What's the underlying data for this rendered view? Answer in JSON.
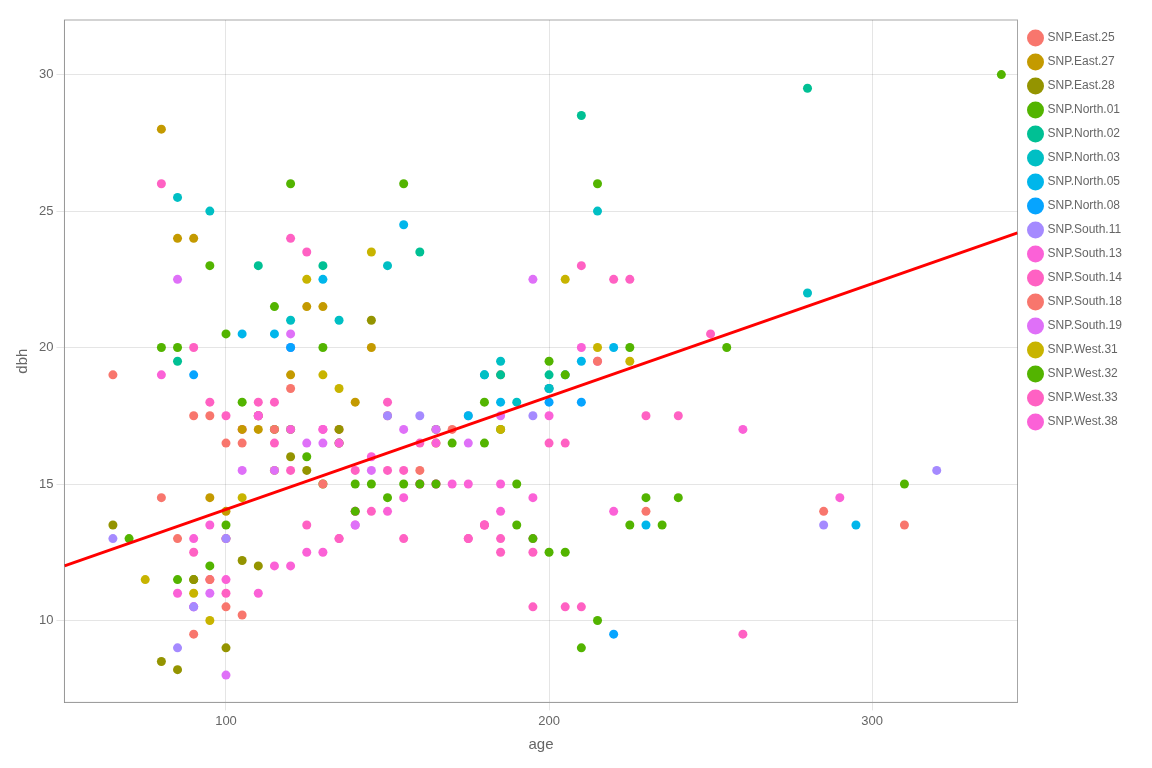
{
  "chart_data": {
    "type": "scatter",
    "xlabel": "age",
    "ylabel": "dbh",
    "xlim": [
      50,
      345
    ],
    "ylim": [
      7,
      32
    ],
    "xticks": [
      100,
      200,
      300
    ],
    "yticks": [
      10,
      15,
      20,
      25,
      30
    ],
    "grid": true,
    "legend": "right",
    "series": [
      {
        "name": "SNP.East.25",
        "color": "#F8766D",
        "x": [
          65,
          80,
          85,
          90,
          95,
          100,
          105
        ],
        "values": [
          19.0,
          14.5,
          13.0,
          9.5,
          11.5,
          10.5,
          10.2
        ]
      },
      {
        "name": "SNP.East.27",
        "color": "#C49A00",
        "x": [
          80,
          85,
          90,
          95,
          100,
          105,
          110,
          120,
          125,
          130,
          140,
          145
        ],
        "values": [
          28.0,
          24.0,
          24.0,
          14.5,
          14.0,
          17.0,
          17.0,
          19.0,
          21.5,
          21.5,
          18.0,
          20.0
        ]
      },
      {
        "name": "SNP.East.28",
        "color": "#949400",
        "x": [
          65,
          80,
          85,
          90,
          100,
          105,
          110,
          120,
          125,
          135,
          145
        ],
        "values": [
          13.5,
          8.5,
          8.2,
          11.5,
          9.0,
          12.2,
          12.0,
          16.0,
          15.5,
          17.0,
          21.0
        ]
      },
      {
        "name": "SNP.North.01",
        "color": "#53B400",
        "x": [
          70,
          85,
          95,
          100,
          115,
          120,
          130,
          140,
          145,
          155,
          165,
          180,
          190,
          200,
          205,
          215,
          225,
          230,
          240,
          255,
          310,
          340
        ],
        "values": [
          13.0,
          20.0,
          23.0,
          20.5,
          21.5,
          26.0,
          20.0,
          14.0,
          15.0,
          26.0,
          15.0,
          18.0,
          15.0,
          19.5,
          19.0,
          26.0,
          20.0,
          14.5,
          14.5,
          20.0,
          15.0,
          30.0
        ]
      },
      {
        "name": "SNP.North.02",
        "color": "#00C094",
        "x": [
          85,
          110,
          130,
          160,
          185,
          200,
          210,
          280
        ],
        "values": [
          19.5,
          23.0,
          23.0,
          23.5,
          19.0,
          19.0,
          28.5,
          29.5
        ]
      },
      {
        "name": "SNP.North.03",
        "color": "#00BFC4",
        "x": [
          85,
          95,
          120,
          135,
          150,
          180,
          185,
          190,
          200,
          215,
          280
        ],
        "values": [
          25.5,
          25.0,
          21.0,
          21.0,
          23.0,
          19.0,
          19.5,
          18.0,
          18.5,
          25.0,
          22.0
        ]
      },
      {
        "name": "SNP.North.05",
        "color": "#00B6EB",
        "x": [
          105,
          115,
          130,
          155,
          175,
          185,
          200,
          205,
          210,
          220,
          230,
          295
        ],
        "values": [
          20.5,
          20.5,
          22.5,
          24.5,
          17.5,
          18.0,
          18.5,
          19.0,
          19.5,
          20.0,
          13.5,
          13.5
        ]
      },
      {
        "name": "SNP.North.08",
        "color": "#06A4FF",
        "x": [
          90,
          120,
          180,
          200,
          210,
          220
        ],
        "values": [
          19.0,
          20.0,
          19.0,
          18.0,
          18.0,
          9.5
        ]
      },
      {
        "name": "SNP.South.11",
        "color": "#A58AFF",
        "x": [
          65,
          85,
          90,
          100,
          120,
          150,
          160,
          175,
          195,
          285,
          320
        ],
        "values": [
          13.0,
          9.0,
          10.5,
          13.0,
          20.0,
          17.5,
          17.5,
          17.5,
          17.5,
          13.5,
          15.5
        ]
      },
      {
        "name": "SNP.South.13",
        "color": "#FB61D7",
        "x": [
          90,
          95,
          100,
          110,
          120,
          130,
          135,
          140,
          145,
          165,
          175,
          185,
          195,
          220,
          290
        ],
        "values": [
          13.0,
          13.5,
          13.0,
          17.5,
          17.0,
          17.0,
          16.5,
          14.0,
          16.0,
          16.5,
          15.0,
          15.0,
          14.5,
          14.0,
          14.5
        ]
      },
      {
        "name": "SNP.South.14",
        "color": "#FF61C3",
        "x": [
          90,
          95,
          100,
          105,
          110,
          115,
          120,
          125,
          135,
          140,
          150,
          155,
          160,
          175,
          180,
          185,
          195,
          205,
          210
        ],
        "values": [
          12.5,
          11.5,
          11.0,
          17.0,
          17.5,
          16.5,
          15.5,
          13.5,
          13.0,
          14.0,
          18.0,
          13.0,
          16.5,
          13.0,
          13.5,
          12.5,
          10.5,
          10.5,
          10.5
        ]
      },
      {
        "name": "SNP.South.18",
        "color": "#F8766D",
        "x": [
          90,
          95,
          100,
          105,
          110,
          115,
          120,
          130,
          135,
          150,
          160,
          170,
          185,
          200,
          215,
          230,
          285,
          310
        ],
        "values": [
          17.5,
          17.5,
          16.5,
          16.5,
          17.5,
          17.0,
          18.5,
          15.0,
          17.0,
          17.5,
          15.5,
          17.0,
          19.0,
          18.5,
          19.5,
          14.0,
          14.0,
          13.5
        ]
      },
      {
        "name": "SNP.South.19",
        "color": "#DF70F8",
        "x": [
          85,
          90,
          95,
          100,
          105,
          115,
          120,
          125,
          130,
          140,
          145,
          155,
          165,
          175,
          185,
          195
        ],
        "values": [
          22.5,
          10.5,
          11.0,
          8.0,
          15.5,
          15.5,
          20.5,
          16.5,
          16.5,
          13.5,
          15.5,
          17.0,
          17.0,
          16.5,
          17.5,
          22.5
        ]
      },
      {
        "name": "SNP.West.31",
        "color": "#C8B400",
        "x": [
          75,
          90,
          95,
          100,
          105,
          115,
          125,
          130,
          135,
          145,
          165,
          185,
          205,
          215,
          225
        ],
        "values": [
          11.5,
          11.0,
          10.0,
          13.0,
          14.5,
          15.5,
          22.5,
          19.0,
          18.5,
          23.5,
          16.5,
          17.0,
          22.5,
          20.0,
          19.5
        ]
      },
      {
        "name": "SNP.West.32",
        "color": "#53B400",
        "x": [
          80,
          85,
          90,
          95,
          100,
          105,
          110,
          115,
          120,
          125,
          130,
          135,
          140,
          150,
          155,
          160,
          165,
          170,
          180,
          185,
          190,
          195,
          200,
          205,
          210,
          215,
          225,
          235
        ],
        "values": [
          20.0,
          11.5,
          11.5,
          12.0,
          13.5,
          18.0,
          17.5,
          17.0,
          17.0,
          16.0,
          15.0,
          16.5,
          15.0,
          14.5,
          15.0,
          15.0,
          17.0,
          16.5,
          16.5,
          17.0,
          13.5,
          13.0,
          12.5,
          12.5,
          9.0,
          10.0,
          13.5,
          13.5
        ]
      },
      {
        "name": "SNP.West.33",
        "color": "#FF61C3",
        "x": [
          80,
          90,
          95,
          100,
          110,
          115,
          120,
          125,
          130,
          135,
          140,
          145,
          150,
          155,
          160,
          165,
          175,
          180,
          185,
          195,
          200,
          205,
          210,
          220,
          225,
          230,
          240,
          250,
          260
        ],
        "values": [
          26.0,
          20.0,
          18.0,
          17.5,
          18.0,
          18.0,
          24.0,
          23.5,
          17.0,
          16.5,
          15.5,
          14.0,
          15.5,
          15.5,
          15.0,
          15.0,
          13.0,
          13.5,
          13.0,
          12.5,
          16.5,
          16.5,
          23.0,
          22.5,
          22.5,
          17.5,
          17.5,
          20.5,
          9.5
        ]
      },
      {
        "name": "SNP.West.38",
        "color": "#FB61D7",
        "x": [
          80,
          85,
          90,
          100,
          110,
          115,
          120,
          125,
          130,
          135,
          140,
          150,
          155,
          160,
          165,
          170,
          180,
          185,
          195,
          200,
          210,
          215,
          260
        ],
        "values": [
          19.0,
          11.0,
          10.5,
          11.5,
          11.0,
          12.0,
          12.0,
          12.5,
          12.5,
          13.0,
          13.5,
          14.0,
          14.5,
          15.0,
          15.0,
          15.0,
          13.5,
          14.0,
          13.0,
          17.5,
          20.0,
          19.5,
          17.0
        ]
      },
      {
        "type": "line",
        "color": "#FF0000",
        "x": [
          50,
          345
        ],
        "values": [
          12.0,
          24.2
        ]
      }
    ]
  }
}
